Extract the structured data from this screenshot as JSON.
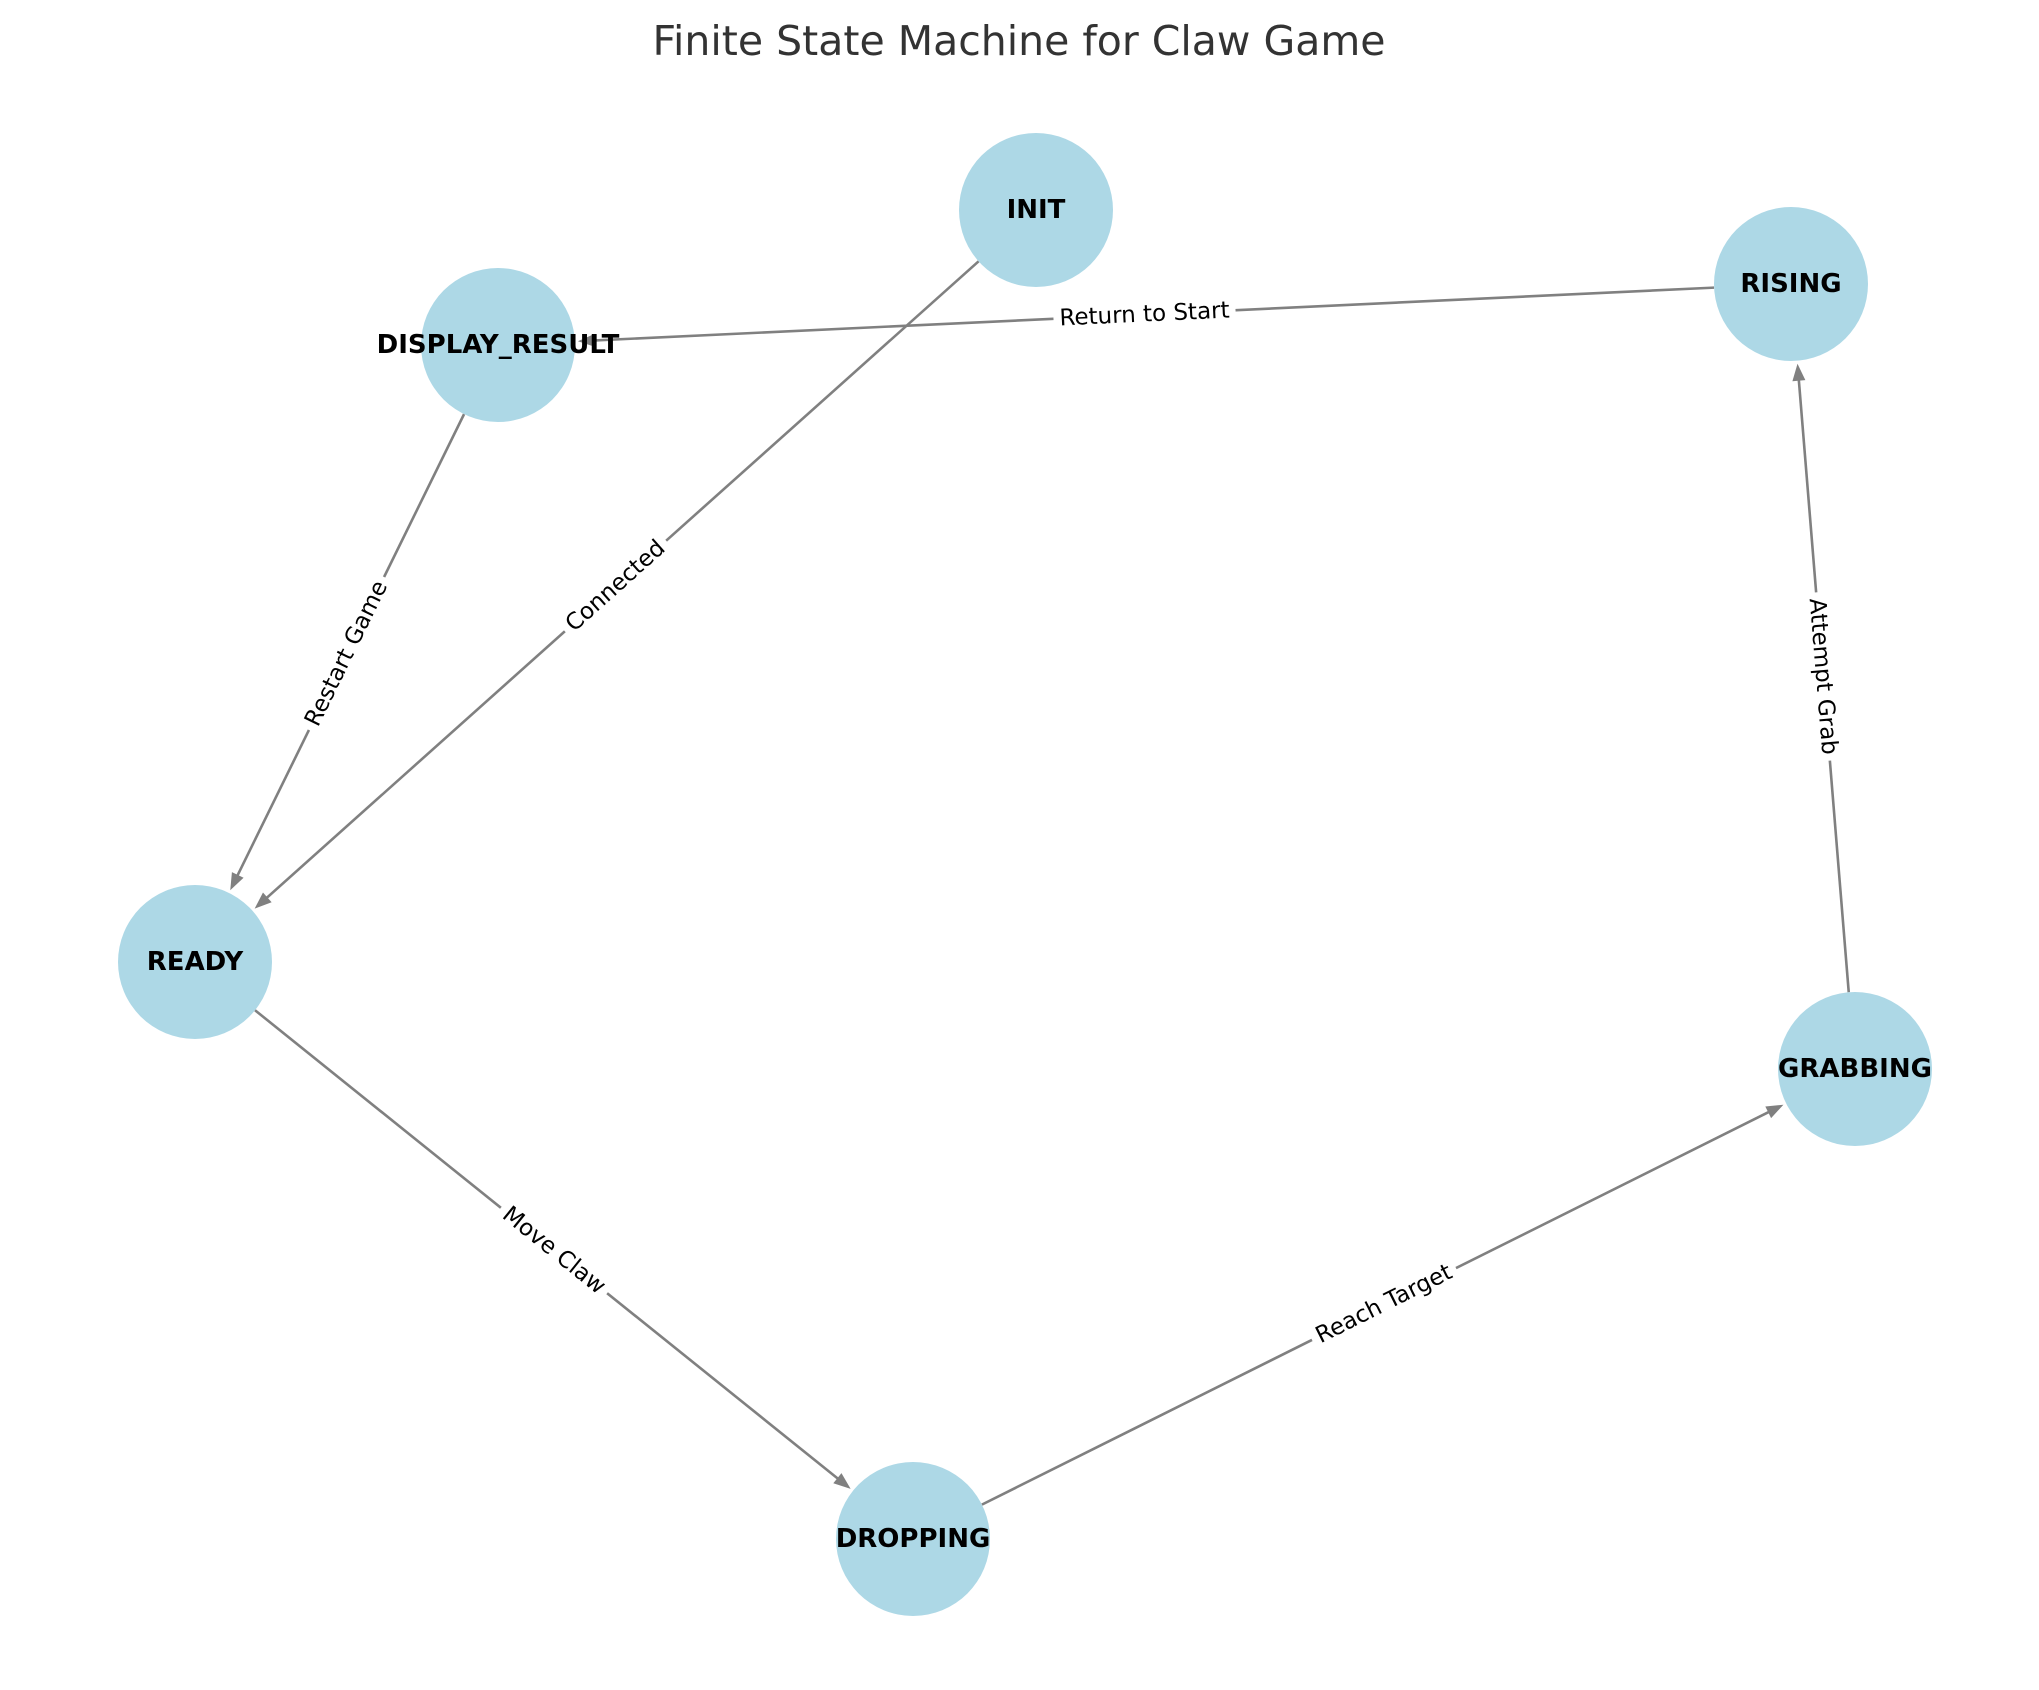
{
  "title": "Finite State Machine for Claw Game",
  "colors": {
    "node_fill": "#add8e6",
    "edge": "#808080",
    "label": "#000000",
    "title": "#333333",
    "background": "#ffffff"
  },
  "states": [
    {
      "id": "INIT",
      "label": "INIT"
    },
    {
      "id": "RISING",
      "label": "RISING"
    },
    {
      "id": "DISPLAY_RESULT",
      "label": "DISPLAY_RESULT"
    },
    {
      "id": "READY",
      "label": "READY"
    },
    {
      "id": "GRABBING",
      "label": "GRABBING"
    },
    {
      "id": "DROPPING",
      "label": "DROPPING"
    }
  ],
  "transitions": [
    {
      "from": "INIT",
      "to": "READY",
      "label": "Connected"
    },
    {
      "from": "READY",
      "to": "DROPPING",
      "label": "Move Claw"
    },
    {
      "from": "DROPPING",
      "to": "GRABBING",
      "label": "Reach Target"
    },
    {
      "from": "GRABBING",
      "to": "RISING",
      "label": "Attempt Grab"
    },
    {
      "from": "RISING",
      "to": "DISPLAY_RESULT",
      "label": "Return to Start"
    },
    {
      "from": "DISPLAY_RESULT",
      "to": "READY",
      "label": "Restart Game"
    }
  ]
}
